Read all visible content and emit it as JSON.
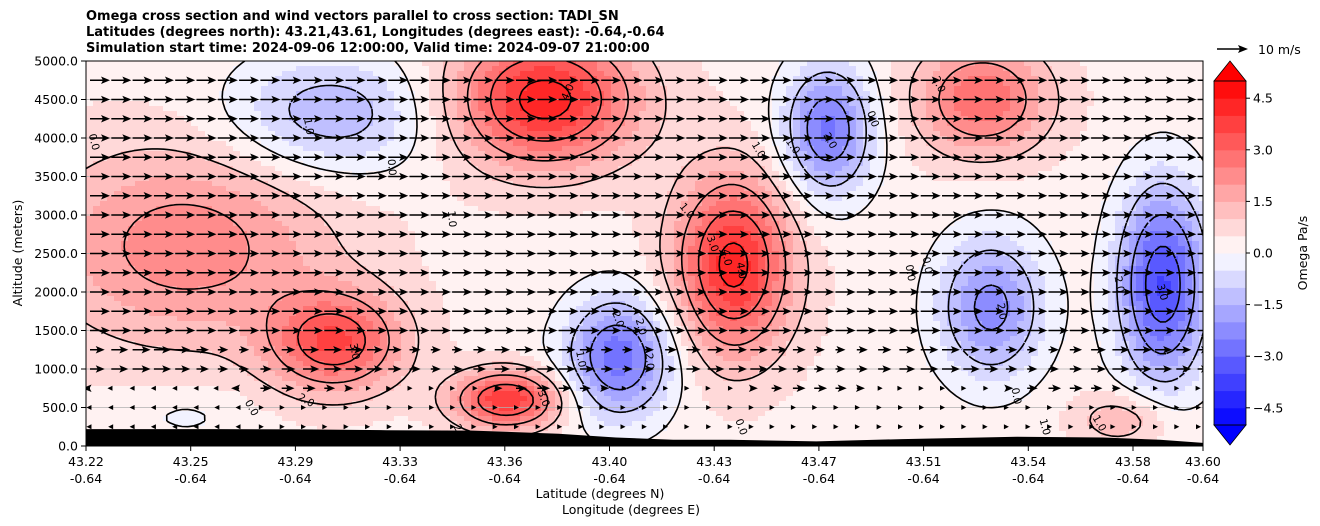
{
  "title": {
    "line1": "Omega cross section and wind vectors parallel to cross section: TADI_SN",
    "line2": "Latitudes (degrees north): 43.21,43.61, Longitudes (degrees east): -0.64,-0.64",
    "line3": "Simulation start time: 2024-09-06 12:00:00, Valid time: 2024-09-07 21:00:00"
  },
  "quiver_key": {
    "label": "10 m/s"
  },
  "colorbar": {
    "label": "Omega Pa/s",
    "ticks": [
      "4.5",
      "3.0",
      "1.5",
      "0.0",
      "−1.5",
      "−3.0",
      "−4.5"
    ],
    "tick_values": [
      4.5,
      3.0,
      1.5,
      0.0,
      -1.5,
      -3.0,
      -4.5
    ],
    "range": [
      -5,
      5
    ],
    "low_color": "#0000ff",
    "high_color": "#ff0000",
    "mid_color": "#ffffff"
  },
  "chart_data": {
    "type": "heatmap",
    "xlabel_line1": "Latitude (degrees N)",
    "xlabel_line2": "Longitude (degrees E)",
    "ylabel": "Altitude (meters)",
    "ylim": [
      0,
      5000
    ],
    "grid": "horizontal",
    "x_ticks": [
      {
        "lat": "43.22",
        "lon": "-0.64"
      },
      {
        "lat": "43.25",
        "lon": "-0.64"
      },
      {
        "lat": "43.29",
        "lon": "-0.64"
      },
      {
        "lat": "43.33",
        "lon": "-0.64"
      },
      {
        "lat": "43.36",
        "lon": "-0.64"
      },
      {
        "lat": "43.40",
        "lon": "-0.64"
      },
      {
        "lat": "43.43",
        "lon": "-0.64"
      },
      {
        "lat": "43.47",
        "lon": "-0.64"
      },
      {
        "lat": "43.51",
        "lon": "-0.64"
      },
      {
        "lat": "43.54",
        "lon": "-0.64"
      },
      {
        "lat": "43.58",
        "lon": "-0.64"
      },
      {
        "lat": "43.60",
        "lon": "-0.64"
      }
    ],
    "y_ticks": [
      "0.0",
      "500.0",
      "1000.0",
      "1500.0",
      "2000.0",
      "2500.0",
      "3000.0",
      "3500.0",
      "4000.0",
      "4500.0",
      "5000.0"
    ],
    "y_tick_values": [
      0,
      500,
      1000,
      1500,
      2000,
      2500,
      3000,
      3500,
      4000,
      4500,
      5000
    ],
    "x_range": [
      43.215,
      43.605
    ],
    "omega_centers": [
      {
        "lat": 43.25,
        "alt": 2600,
        "omega": 2.0,
        "sx": 0.035,
        "sy": 900
      },
      {
        "lat": 43.302,
        "alt": 1350,
        "omega": 3.1,
        "sx": 0.016,
        "sy": 450
      },
      {
        "lat": 43.362,
        "alt": 600,
        "omega": 3.6,
        "sx": 0.013,
        "sy": 260
      },
      {
        "lat": 43.375,
        "alt": 4500,
        "omega": 4.0,
        "sx": 0.022,
        "sy": 600
      },
      {
        "lat": 43.441,
        "alt": 2350,
        "omega": 3.9,
        "sx": 0.014,
        "sy": 800
      },
      {
        "lat": 43.528,
        "alt": 4500,
        "omega": 2.6,
        "sx": 0.016,
        "sy": 500
      },
      {
        "lat": 43.578,
        "alt": 350,
        "omega": 1.2,
        "sx": 0.012,
        "sy": 250
      },
      {
        "lat": 43.3,
        "alt": 4300,
        "omega": -1.8,
        "sx": 0.025,
        "sy": 550
      },
      {
        "lat": 43.401,
        "alt": 1150,
        "omega": -3.2,
        "sx": 0.013,
        "sy": 550
      },
      {
        "lat": 43.474,
        "alt": 4100,
        "omega": -3.0,
        "sx": 0.011,
        "sy": 600
      },
      {
        "lat": 43.531,
        "alt": 1800,
        "omega": -2.6,
        "sx": 0.013,
        "sy": 650
      },
      {
        "lat": 43.591,
        "alt": 2100,
        "omega": -3.9,
        "sx": 0.011,
        "sy": 900
      },
      {
        "lat": 43.25,
        "alt": 400,
        "omega": -0.5,
        "sx": 0.015,
        "sy": 250
      }
    ],
    "contour_levels": [
      -3.0,
      -2.0,
      -1.0,
      0.0,
      1.0,
      2.0,
      3.0,
      4.0
    ],
    "contour_labels": [
      {
        "text": "0.0",
        "lat": 43.218,
        "alt": 3950,
        "rot": 75
      },
      {
        "text": "1.0",
        "lat": 43.293,
        "alt": 4150,
        "rot": 80
      },
      {
        "text": "0.0",
        "lat": 43.322,
        "alt": 3620,
        "rot": 85
      },
      {
        "text": "1.0",
        "lat": 43.343,
        "alt": 2950,
        "rot": 85
      },
      {
        "text": "4.0",
        "lat": 43.383,
        "alt": 4600,
        "rot": -65
      },
      {
        "text": "3.0",
        "lat": 43.309,
        "alt": 1230,
        "rot": 80
      },
      {
        "text": "2.0",
        "lat": 43.292,
        "alt": 600,
        "rot": 30
      },
      {
        "text": "0.0",
        "lat": 43.273,
        "alt": 500,
        "rot": 60
      },
      {
        "text": "3.0",
        "lat": 43.375,
        "alt": 620,
        "rot": 70
      },
      {
        "text": "2",
        "lat": 43.345,
        "alt": 240,
        "rot": 60
      },
      {
        "text": "1.0",
        "lat": 43.388,
        "alt": 1130,
        "rot": 80
      },
      {
        "text": "2.0",
        "lat": 43.401,
        "alt": 1650,
        "rot": 70
      },
      {
        "text": "2.0",
        "lat": 43.409,
        "alt": 1550,
        "rot": 75
      },
      {
        "text": "2.0",
        "lat": 43.412,
        "alt": 1100,
        "rot": 85
      },
      {
        "text": "0.0",
        "lat": 43.444,
        "alt": 250,
        "rot": 70
      },
      {
        "text": "3.0",
        "lat": 43.434,
        "alt": 2630,
        "rot": 70
      },
      {
        "text": "4.0",
        "lat": 43.439,
        "alt": 2450,
        "rot": 80
      },
      {
        "text": "4.0",
        "lat": 43.444,
        "alt": 2280,
        "rot": 80
      },
      {
        "text": "1.0",
        "lat": 43.45,
        "alt": 3850,
        "rot": 60
      },
      {
        "text": "1.0",
        "lat": 43.462,
        "alt": 3900,
        "rot": 55
      },
      {
        "text": "1.0",
        "lat": 43.425,
        "alt": 3060,
        "rot": 50
      },
      {
        "text": "2.0",
        "lat": 43.475,
        "alt": 3970,
        "rot": 60
      },
      {
        "text": "0.0",
        "lat": 43.49,
        "alt": 4250,
        "rot": 70
      },
      {
        "text": "0.0",
        "lat": 43.503,
        "alt": 2250,
        "rot": 80
      },
      {
        "text": "0.0",
        "lat": 43.509,
        "alt": 2350,
        "rot": 80
      },
      {
        "text": "2.0",
        "lat": 43.513,
        "alt": 4700,
        "rot": 65
      },
      {
        "text": "2.0",
        "lat": 43.535,
        "alt": 1750,
        "rot": 80
      },
      {
        "text": "0.0",
        "lat": 43.54,
        "alt": 650,
        "rot": 80
      },
      {
        "text": "1.0",
        "lat": 43.55,
        "alt": 250,
        "rot": 75
      },
      {
        "text": "1.0",
        "lat": 43.569,
        "alt": 300,
        "rot": 60
      },
      {
        "text": "2.0",
        "lat": 43.576,
        "alt": 2100,
        "rot": 80
      },
      {
        "text": "3.0",
        "lat": 43.591,
        "alt": 2000,
        "rot": 75
      }
    ],
    "terrain_alt_m": [
      220,
      220,
      215,
      205,
      200,
      160,
      110,
      80,
      80,
      60,
      90,
      120,
      110,
      80,
      40
    ],
    "terrain_lat": [
      43.215,
      43.26,
      43.29,
      43.32,
      43.35,
      43.38,
      43.4,
      43.42,
      43.44,
      43.47,
      43.5,
      43.54,
      43.57,
      43.59,
      43.605
    ]
  }
}
